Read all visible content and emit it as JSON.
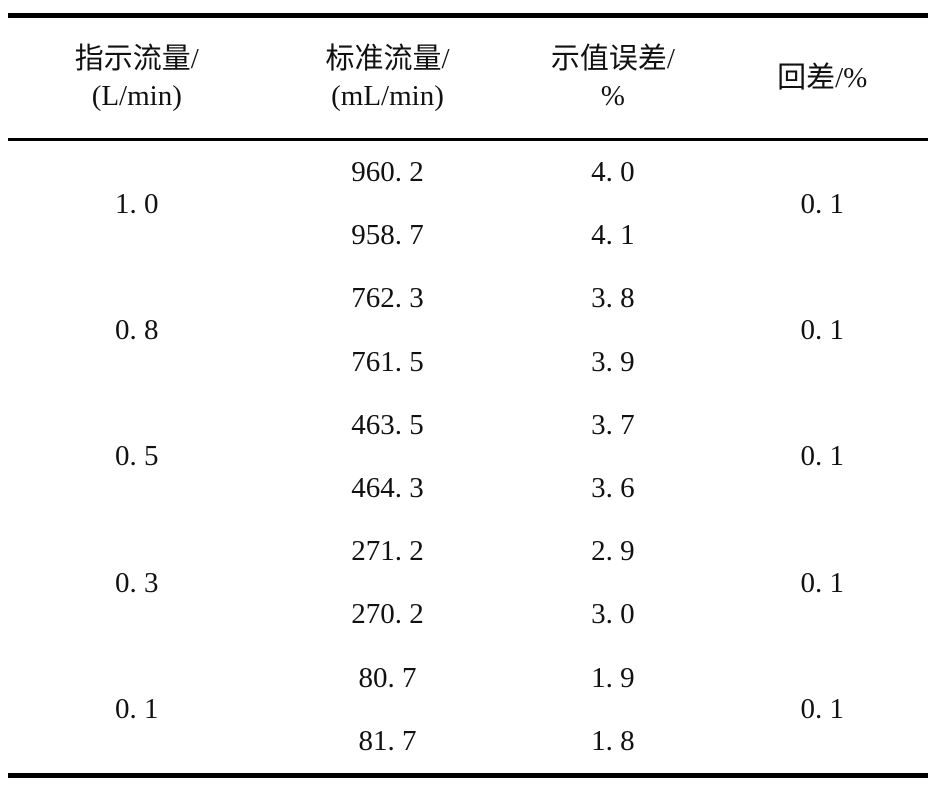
{
  "table": {
    "headers": {
      "indicated_flow_line1": "指示流量/",
      "indicated_flow_line2": "(L/min)",
      "standard_flow_line1": "标准流量/",
      "standard_flow_line2": "(mL/min)",
      "error_line1": "示值误差/",
      "error_line2": "%",
      "hysteresis": "回差/%"
    },
    "rows": [
      {
        "indicated": "1. 0",
        "standard_1": "960. 2",
        "standard_2": "958. 7",
        "error_1": "4. 0",
        "error_2": "4. 1",
        "hysteresis": "0. 1"
      },
      {
        "indicated": "0. 8",
        "standard_1": "762. 3",
        "standard_2": "761. 5",
        "error_1": "3. 8",
        "error_2": "3. 9",
        "hysteresis": "0. 1"
      },
      {
        "indicated": "0. 5",
        "standard_1": "463. 5",
        "standard_2": "464. 3",
        "error_1": "3. 7",
        "error_2": "3. 6",
        "hysteresis": "0. 1"
      },
      {
        "indicated": "0. 3",
        "standard_1": "271. 2",
        "standard_2": "270. 2",
        "error_1": "2. 9",
        "error_2": "3. 0",
        "hysteresis": "0. 1"
      },
      {
        "indicated": "0. 1",
        "standard_1": "80. 7",
        "standard_2": "81. 7",
        "error_1": "1. 9",
        "error_2": "1. 8",
        "hysteresis": "0. 1"
      }
    ]
  }
}
